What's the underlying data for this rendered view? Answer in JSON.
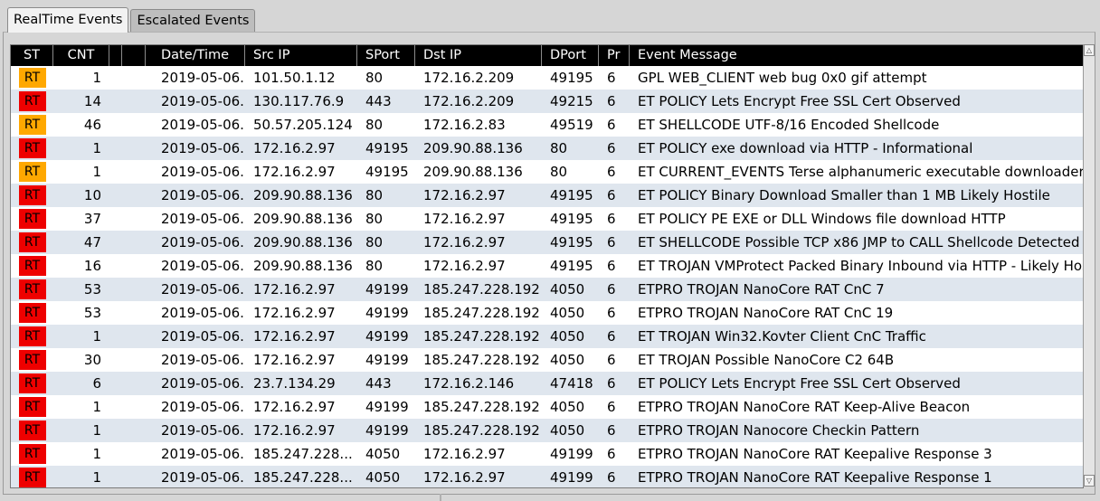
{
  "tabs": [
    {
      "label": "RealTime Events",
      "active": true
    },
    {
      "label": "Escalated Events",
      "active": false
    }
  ],
  "columns": {
    "st": "ST",
    "cnt": "CNT",
    "extra1": "",
    "extra2": "",
    "datetime": "Date/Time",
    "src_ip": "Src IP",
    "sport": "SPort",
    "dst_ip": "Dst IP",
    "dport": "DPort",
    "pr": "Pr",
    "message": "Event Message"
  },
  "status_colors": {
    "orange": "#ffa800",
    "red": "#ee0000"
  },
  "rows": [
    {
      "st": "RT",
      "color": "orange",
      "cnt": "1",
      "datetime": "2019-05-06...",
      "src_ip": "101.50.1.12",
      "sport": "80",
      "dst_ip": "172.16.2.209",
      "dport": "49195",
      "pr": "6",
      "message": "GPL WEB_CLIENT web bug 0x0 gif attempt"
    },
    {
      "st": "RT",
      "color": "red",
      "cnt": "14",
      "datetime": "2019-05-06...",
      "src_ip": "130.117.76.9",
      "sport": "443",
      "dst_ip": "172.16.2.209",
      "dport": "49215",
      "pr": "6",
      "message": "ET POLICY Lets Encrypt Free SSL Cert Observed"
    },
    {
      "st": "RT",
      "color": "orange",
      "cnt": "46",
      "datetime": "2019-05-06...",
      "src_ip": "50.57.205.124",
      "sport": "80",
      "dst_ip": "172.16.2.83",
      "dport": "49519",
      "pr": "6",
      "message": "ET SHELLCODE UTF-8/16 Encoded Shellcode"
    },
    {
      "st": "RT",
      "color": "red",
      "cnt": "1",
      "datetime": "2019-05-06...",
      "src_ip": "172.16.2.97",
      "sport": "49195",
      "dst_ip": "209.90.88.136",
      "dport": "80",
      "pr": "6",
      "message": "ET POLICY exe download via HTTP - Informational"
    },
    {
      "st": "RT",
      "color": "orange",
      "cnt": "1",
      "datetime": "2019-05-06...",
      "src_ip": "172.16.2.97",
      "sport": "49195",
      "dst_ip": "209.90.88.136",
      "dport": "80",
      "pr": "6",
      "message": "ET CURRENT_EVENTS Terse alphanumeric executable downloader hi..."
    },
    {
      "st": "RT",
      "color": "red",
      "cnt": "10",
      "datetime": "2019-05-06...",
      "src_ip": "209.90.88.136",
      "sport": "80",
      "dst_ip": "172.16.2.97",
      "dport": "49195",
      "pr": "6",
      "message": "ET POLICY Binary Download Smaller than 1 MB Likely Hostile"
    },
    {
      "st": "RT",
      "color": "red",
      "cnt": "37",
      "datetime": "2019-05-06...",
      "src_ip": "209.90.88.136",
      "sport": "80",
      "dst_ip": "172.16.2.97",
      "dport": "49195",
      "pr": "6",
      "message": "ET POLICY PE EXE or DLL Windows file download HTTP"
    },
    {
      "st": "RT",
      "color": "red",
      "cnt": "47",
      "datetime": "2019-05-06...",
      "src_ip": "209.90.88.136",
      "sport": "80",
      "dst_ip": "172.16.2.97",
      "dport": "49195",
      "pr": "6",
      "message": "ET SHELLCODE Possible TCP x86 JMP to CALL Shellcode Detected"
    },
    {
      "st": "RT",
      "color": "red",
      "cnt": "16",
      "datetime": "2019-05-06...",
      "src_ip": "209.90.88.136",
      "sport": "80",
      "dst_ip": "172.16.2.97",
      "dport": "49195",
      "pr": "6",
      "message": "ET TROJAN VMProtect Packed Binary Inbound via HTTP - Likely Hostile"
    },
    {
      "st": "RT",
      "color": "red",
      "cnt": "53",
      "datetime": "2019-05-06...",
      "src_ip": "172.16.2.97",
      "sport": "49199",
      "dst_ip": "185.247.228.192",
      "dport": "4050",
      "pr": "6",
      "message": "ETPRO TROJAN NanoCore RAT CnC 7"
    },
    {
      "st": "RT",
      "color": "red",
      "cnt": "53",
      "datetime": "2019-05-06...",
      "src_ip": "172.16.2.97",
      "sport": "49199",
      "dst_ip": "185.247.228.192",
      "dport": "4050",
      "pr": "6",
      "message": "ETPRO TROJAN NanoCore RAT CnC 19"
    },
    {
      "st": "RT",
      "color": "red",
      "cnt": "1",
      "datetime": "2019-05-06...",
      "src_ip": "172.16.2.97",
      "sport": "49199",
      "dst_ip": "185.247.228.192",
      "dport": "4050",
      "pr": "6",
      "message": "ET TROJAN Win32.Kovter Client CnC Traffic"
    },
    {
      "st": "RT",
      "color": "red",
      "cnt": "30",
      "datetime": "2019-05-06...",
      "src_ip": "172.16.2.97",
      "sport": "49199",
      "dst_ip": "185.247.228.192",
      "dport": "4050",
      "pr": "6",
      "message": "ET TROJAN Possible NanoCore C2 64B"
    },
    {
      "st": "RT",
      "color": "red",
      "cnt": "6",
      "datetime": "2019-05-06...",
      "src_ip": "23.7.134.29",
      "sport": "443",
      "dst_ip": "172.16.2.146",
      "dport": "47418",
      "pr": "6",
      "message": "ET POLICY Lets Encrypt Free SSL Cert Observed"
    },
    {
      "st": "RT",
      "color": "red",
      "cnt": "1",
      "datetime": "2019-05-06...",
      "src_ip": "172.16.2.97",
      "sport": "49199",
      "dst_ip": "185.247.228.192",
      "dport": "4050",
      "pr": "6",
      "message": "ETPRO TROJAN NanoCore RAT Keep-Alive Beacon"
    },
    {
      "st": "RT",
      "color": "red",
      "cnt": "1",
      "datetime": "2019-05-06...",
      "src_ip": "172.16.2.97",
      "sport": "49199",
      "dst_ip": "185.247.228.192",
      "dport": "4050",
      "pr": "6",
      "message": "ETPRO TROJAN Nanocore Checkin Pattern"
    },
    {
      "st": "RT",
      "color": "red",
      "cnt": "1",
      "datetime": "2019-05-06...",
      "src_ip": "185.247.228...",
      "sport": "4050",
      "dst_ip": "172.16.2.97",
      "dport": "49199",
      "pr": "6",
      "message": "ETPRO TROJAN NanoCore RAT Keepalive Response 3"
    },
    {
      "st": "RT",
      "color": "red",
      "cnt": "1",
      "datetime": "2019-05-06...",
      "src_ip": "185.247.228...",
      "sport": "4050",
      "dst_ip": "172.16.2.97",
      "dport": "49199",
      "pr": "6",
      "message": "ETPRO TROJAN NanoCore RAT Keepalive Response 1"
    }
  ],
  "scroll_icons": {
    "up": "triangle-up-icon",
    "down": "triangle-down-icon"
  }
}
